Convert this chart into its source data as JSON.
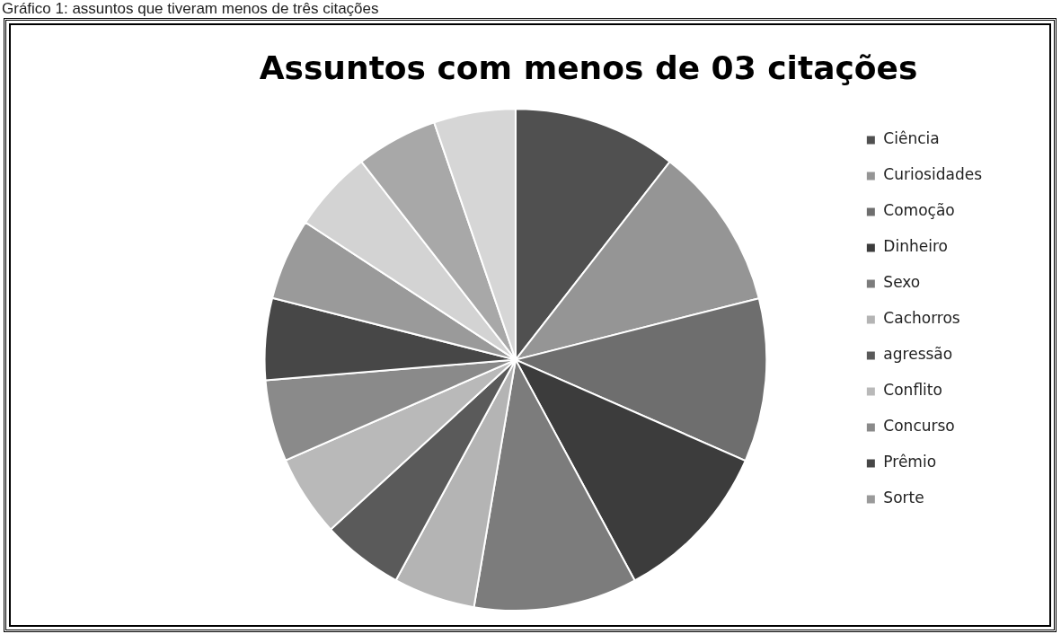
{
  "chart_data": {
    "type": "pie",
    "title": "Assuntos com menos de 03 citações",
    "annotations": [
      "Gráfico 1: assuntos que tiveram menos de três citações"
    ],
    "categories": [
      "Ciência",
      "Curiosidades",
      "Comoção",
      "Dinheiro",
      "Sexo",
      "Cachorros",
      "agressão",
      "Conflito",
      "Concurso",
      "Prêmio",
      "Sorte",
      null,
      null,
      null
    ],
    "values": [
      10.53,
      10.53,
      10.53,
      10.53,
      10.53,
      5.26,
      5.26,
      5.26,
      5.26,
      5.26,
      5.26,
      5.26,
      5.26,
      5.26
    ],
    "colors": [
      "#505050",
      "#959595",
      "#6e6e6e",
      "#3c3c3c",
      "#7c7c7c",
      "#b4b4b4",
      "#5a5a5a",
      "#b9b9b9",
      "#8a8a8a",
      "#474747",
      "#9a9a9a",
      "#d3d3d3",
      "#a8a8a8",
      "#d6d6d6"
    ],
    "legend": "right"
  }
}
